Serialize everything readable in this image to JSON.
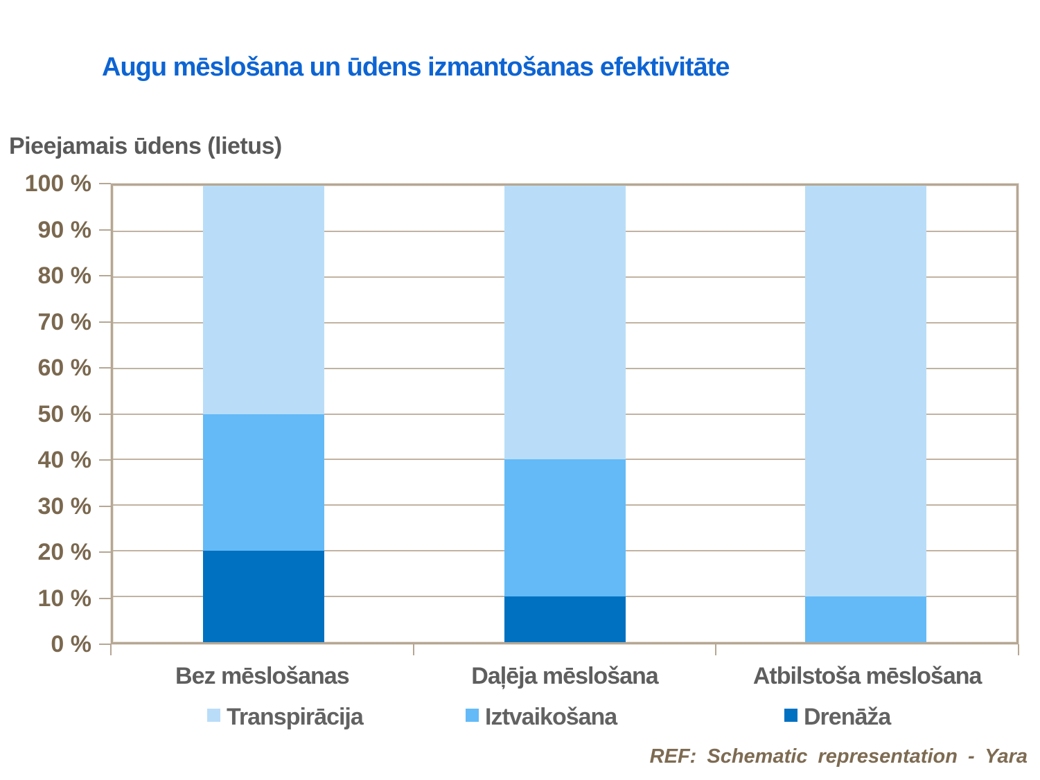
{
  "page": {
    "footer": "REF: Schematic representation - Yara"
  },
  "colors": {
    "title_blue": "#0d64d3",
    "axis_text_brown": "#7a684f",
    "label_gray": "#5e5e5e",
    "plot_border_taupe": "#b5a794",
    "gridline_taupe": "#c0b3a2"
  },
  "chart_data": {
    "type": "bar",
    "stacked": true,
    "title": "Augu mēslošana un ūdens izmantošanas efektivitāte",
    "y_axis_title": "Pieejamais ūdens (lietus)",
    "categories": [
      "Bez mēslošanas",
      "Daļēja mēslošana",
      "Atbilstoša mēslošana"
    ],
    "series": [
      {
        "name": "Transpirācija",
        "color": "#b9ddf8",
        "values": [
          50,
          60,
          90
        ]
      },
      {
        "name": "Iztvaikošana",
        "color": "#63baf7",
        "values": [
          30,
          30,
          10
        ]
      },
      {
        "name": "Drenāža",
        "color": "#0071c1",
        "values": [
          20,
          10,
          0
        ]
      }
    ],
    "stack_order_bottom_to_top": [
      "Drenāža",
      "Iztvaikošana",
      "Transpirācija"
    ],
    "y_ticks": [
      "100 %",
      "90 %",
      "80 %",
      "70 %",
      "60 %",
      "50 %",
      "40 %",
      "30 %",
      "20 %",
      "10 %",
      "0 %"
    ],
    "ylim": [
      0,
      100
    ],
    "grid": true,
    "legend_position": "bottom"
  }
}
